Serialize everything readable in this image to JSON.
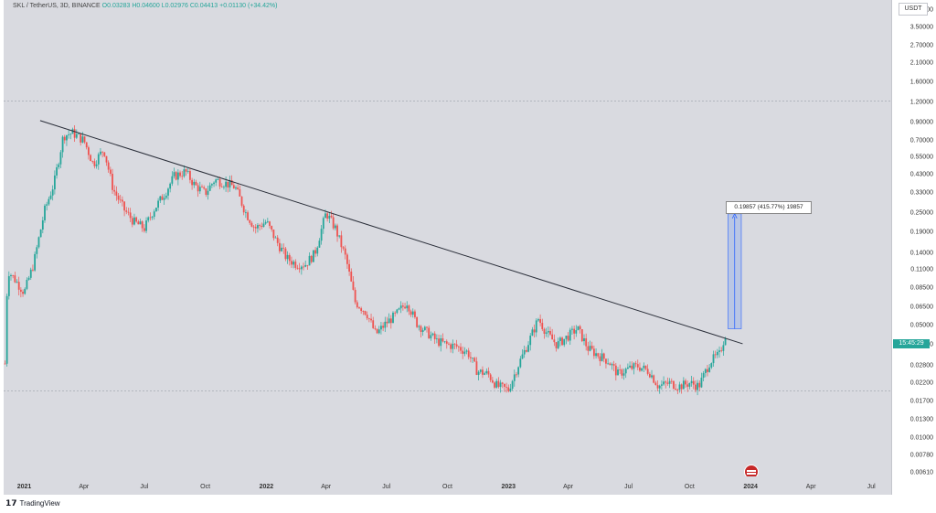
{
  "legend": {
    "symbol": "SKL / TetherUS, 3D, BINANCE",
    "open": "O0.03283",
    "high": "H0.04600",
    "low": "L0.02976",
    "close": "C0.04413",
    "change": "+0.01130 (+34.42%)"
  },
  "price_axis": {
    "currency": "USDT",
    "ticks": [
      "4.50000",
      "3.50000",
      "2.70000",
      "2.10000",
      "1.60000",
      "1.20000",
      "0.90000",
      "0.70000",
      "0.55000",
      "0.43000",
      "0.33000",
      "0.25000",
      "0.19000",
      "0.14000",
      "0.11000",
      "0.08500",
      "0.06500",
      "0.05000",
      "0.03800",
      "0.02800",
      "0.02200",
      "0.01700",
      "0.01300",
      "0.01000",
      "0.00780",
      "0.00610"
    ],
    "last_price_label": "15:45:29"
  },
  "time_axis": {
    "ticks": [
      "2021",
      "Apr",
      "Jul",
      "Oct",
      "2022",
      "Apr",
      "Jul",
      "Oct",
      "2023",
      "Apr",
      "Jul",
      "Oct",
      "2024",
      "Apr",
      "Jul"
    ]
  },
  "measure": {
    "label": "0.19857 (415.77%) 19857"
  },
  "footer": {
    "brand": "TradingView"
  },
  "colors": {
    "up": "#26a69a",
    "down": "#ef5350",
    "background": "#d9dae0",
    "trendline": "#2a2e39",
    "measure_fill": "#aebfe6",
    "measure_line": "#2962ff"
  },
  "chart_data": {
    "type": "candlestick",
    "interval": "3D",
    "y_scale": "log",
    "ylim": [
      0.0058,
      5.2
    ],
    "xlim": [
      "2020-12-01",
      "2024-07-31"
    ],
    "trendline": [
      {
        "date": "2021-01-25",
        "price": 0.93
      },
      {
        "date": "2023-12-20",
        "price": 0.0385
      }
    ],
    "measure_range": {
      "from_date": "2023-11-28",
      "to_date": "2023-12-18",
      "low": 0.0477,
      "high": 0.246
    },
    "horizontal_levels": [
      1.23,
      0.0196
    ],
    "path": [
      {
        "date": "2020-12-03",
        "price": 0.029
      },
      {
        "date": "2020-12-07",
        "price": 0.11
      },
      {
        "date": "2020-12-15",
        "price": 0.1
      },
      {
        "date": "2021-01-01",
        "price": 0.08
      },
      {
        "date": "2021-01-15",
        "price": 0.12
      },
      {
        "date": "2021-02-01",
        "price": 0.26
      },
      {
        "date": "2021-02-15",
        "price": 0.38
      },
      {
        "date": "2021-03-01",
        "price": 0.75
      },
      {
        "date": "2021-03-15",
        "price": 0.78
      },
      {
        "date": "2021-04-01",
        "price": 0.7
      },
      {
        "date": "2021-04-15",
        "price": 0.5
      },
      {
        "date": "2021-05-01",
        "price": 0.62
      },
      {
        "date": "2021-05-15",
        "price": 0.35
      },
      {
        "date": "2021-06-01",
        "price": 0.26
      },
      {
        "date": "2021-06-15",
        "price": 0.22
      },
      {
        "date": "2021-07-01",
        "price": 0.2
      },
      {
        "date": "2021-07-15",
        "price": 0.26
      },
      {
        "date": "2021-08-01",
        "price": 0.33
      },
      {
        "date": "2021-08-15",
        "price": 0.42
      },
      {
        "date": "2021-09-01",
        "price": 0.45
      },
      {
        "date": "2021-09-15",
        "price": 0.37
      },
      {
        "date": "2021-10-01",
        "price": 0.33
      },
      {
        "date": "2021-10-15",
        "price": 0.4
      },
      {
        "date": "2021-11-01",
        "price": 0.38
      },
      {
        "date": "2021-11-15",
        "price": 0.36
      },
      {
        "date": "2021-12-01",
        "price": 0.25
      },
      {
        "date": "2021-12-15",
        "price": 0.2
      },
      {
        "date": "2022-01-01",
        "price": 0.22
      },
      {
        "date": "2022-01-15",
        "price": 0.17
      },
      {
        "date": "2022-02-01",
        "price": 0.13
      },
      {
        "date": "2022-02-15",
        "price": 0.12
      },
      {
        "date": "2022-03-01",
        "price": 0.12
      },
      {
        "date": "2022-03-15",
        "price": 0.14
      },
      {
        "date": "2022-04-01",
        "price": 0.25
      },
      {
        "date": "2022-04-15",
        "price": 0.2
      },
      {
        "date": "2022-05-01",
        "price": 0.13
      },
      {
        "date": "2022-05-15",
        "price": 0.07
      },
      {
        "date": "2022-06-01",
        "price": 0.06
      },
      {
        "date": "2022-06-15",
        "price": 0.044
      },
      {
        "date": "2022-07-01",
        "price": 0.052
      },
      {
        "date": "2022-07-15",
        "price": 0.058
      },
      {
        "date": "2022-08-01",
        "price": 0.07
      },
      {
        "date": "2022-08-15",
        "price": 0.052
      },
      {
        "date": "2022-09-01",
        "price": 0.045
      },
      {
        "date": "2022-09-15",
        "price": 0.04
      },
      {
        "date": "2022-10-01",
        "price": 0.038
      },
      {
        "date": "2022-10-15",
        "price": 0.037
      },
      {
        "date": "2022-11-01",
        "price": 0.034
      },
      {
        "date": "2022-11-15",
        "price": 0.026
      },
      {
        "date": "2022-12-01",
        "price": 0.025
      },
      {
        "date": "2022-12-15",
        "price": 0.021
      },
      {
        "date": "2023-01-01",
        "price": 0.02
      },
      {
        "date": "2023-01-15",
        "price": 0.028
      },
      {
        "date": "2023-02-01",
        "price": 0.04
      },
      {
        "date": "2023-02-15",
        "price": 0.055
      },
      {
        "date": "2023-03-01",
        "price": 0.044
      },
      {
        "date": "2023-03-15",
        "price": 0.038
      },
      {
        "date": "2023-04-01",
        "price": 0.043
      },
      {
        "date": "2023-04-15",
        "price": 0.048
      },
      {
        "date": "2023-05-01",
        "price": 0.036
      },
      {
        "date": "2023-05-15",
        "price": 0.033
      },
      {
        "date": "2023-06-01",
        "price": 0.03
      },
      {
        "date": "2023-06-15",
        "price": 0.025
      },
      {
        "date": "2023-07-01",
        "price": 0.027
      },
      {
        "date": "2023-07-15",
        "price": 0.028
      },
      {
        "date": "2023-08-01",
        "price": 0.026
      },
      {
        "date": "2023-08-15",
        "price": 0.021
      },
      {
        "date": "2023-09-01",
        "price": 0.022
      },
      {
        "date": "2023-09-15",
        "price": 0.021
      },
      {
        "date": "2023-10-01",
        "price": 0.022
      },
      {
        "date": "2023-10-15",
        "price": 0.021
      },
      {
        "date": "2023-11-01",
        "price": 0.03
      },
      {
        "date": "2023-11-15",
        "price": 0.033
      },
      {
        "date": "2023-11-24",
        "price": 0.044
      }
    ]
  }
}
